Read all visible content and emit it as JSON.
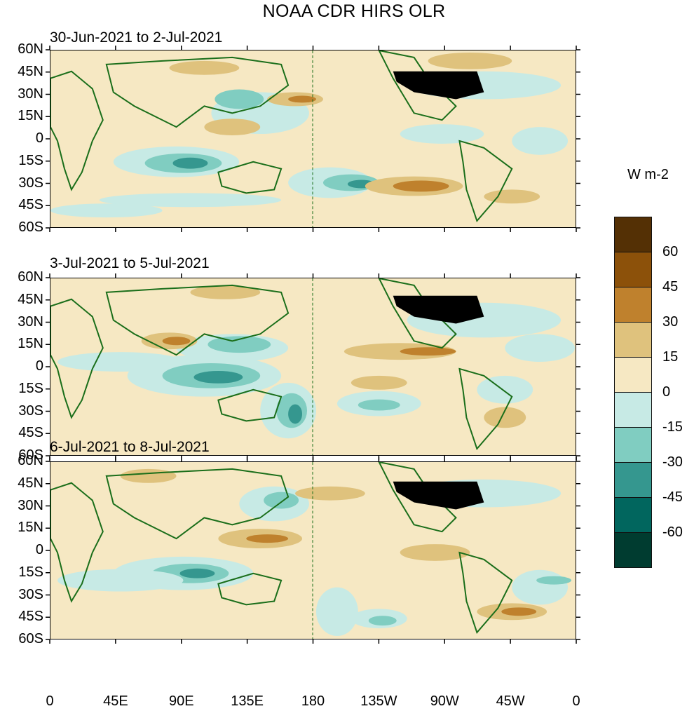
{
  "title": "NOAA CDR HIRS OLR",
  "panels": [
    {
      "label": "30-Jun-2021 to 2-Jul-2021"
    },
    {
      "label": "3-Jul-2021 to 5-Jul-2021"
    },
    {
      "label": "6-Jul-2021 to 8-Jul-2021"
    }
  ],
  "y_ticks": [
    "60N",
    "45N",
    "30N",
    "15N",
    "0",
    "15S",
    "30S",
    "45S",
    "60S"
  ],
  "x_ticks": [
    "0",
    "45E",
    "90E",
    "135E",
    "180",
    "135W",
    "90W",
    "45W",
    "0"
  ],
  "colorbar": {
    "units": "W m-2",
    "labels": [
      "60",
      "45",
      "30",
      "15",
      "0",
      "-15",
      "-30",
      "-45",
      "-60"
    ],
    "colors": [
      "#543005",
      "#8c510a",
      "#bf812d",
      "#dfc27d",
      "#f6e8c3",
      "#c7eae5",
      "#80cdc1",
      "#35978f",
      "#01665e",
      "#003c30"
    ]
  },
  "map_colors": {
    "coast": "#1a6e1a",
    "land_us": "#000000"
  }
}
